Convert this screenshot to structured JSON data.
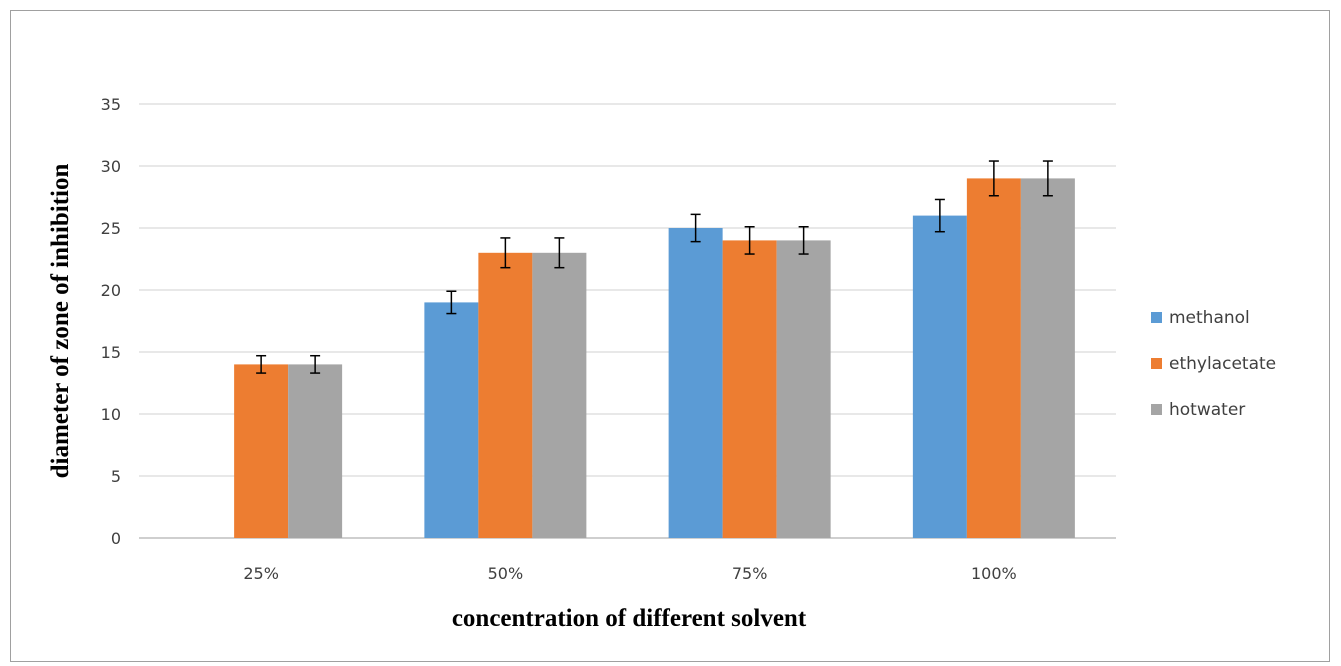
{
  "chart_data": {
    "type": "bar",
    "categories": [
      "25%",
      "50%",
      "75%",
      "100%"
    ],
    "series": [
      {
        "name": "methanol",
        "color": "#5b9bd5",
        "values": [
          0,
          19,
          25,
          26
        ],
        "errors": [
          0,
          0.9,
          1.1,
          1.3
        ]
      },
      {
        "name": "ethylacetate",
        "color": "#ed7d31",
        "values": [
          14,
          23,
          24,
          29
        ],
        "errors": [
          0.7,
          1.2,
          1.1,
          1.4
        ]
      },
      {
        "name": "hotwater",
        "color": "#a5a5a5",
        "values": [
          14,
          23,
          24,
          29
        ],
        "errors": [
          0.7,
          1.2,
          1.1,
          1.4
        ]
      }
    ],
    "xlabel": "concentration  of different  solvent",
    "ylabel": "diameter of zone of inhibition",
    "ylim": [
      0,
      35
    ],
    "yticks": [
      0,
      5,
      10,
      15,
      20,
      25,
      30,
      35
    ],
    "grid": true,
    "error_bars": true,
    "legend_position": "right"
  }
}
